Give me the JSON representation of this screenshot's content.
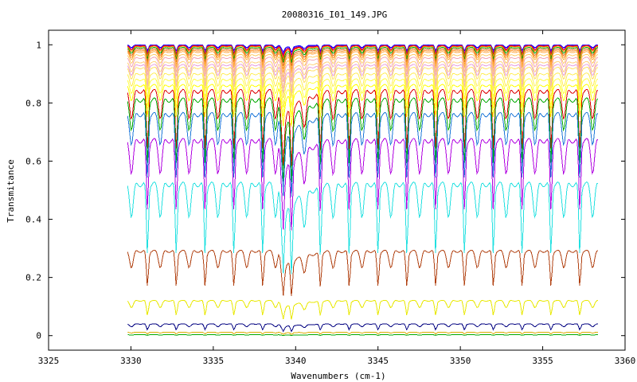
{
  "chart_data": {
    "type": "line",
    "title": "20080316_I01_149.JPG",
    "xlabel": "Wavenumbers (cm-1)",
    "ylabel": "Transmitance",
    "xlim": [
      3325,
      3360
    ],
    "ylim": [
      -0.05,
      1.05
    ],
    "xticks": [
      3325,
      3330,
      3335,
      3340,
      3345,
      3350,
      3355,
      3360
    ],
    "yticks": [
      0,
      0.2,
      0.4,
      0.6,
      0.8,
      1
    ],
    "ytick_labels": [
      "0",
      "0.2",
      "0.4",
      "0.6",
      "0.8",
      "1"
    ],
    "grid": false,
    "x_range_of_data": [
      3329.8,
      3358.4
    ],
    "strong_absorption_at": 3339.2,
    "line_spacing_cm1": 1.75,
    "line_phase_cm1": 3331.0,
    "series": [
      {
        "color": "#0000ff",
        "baseline": 1.0,
        "depth": 0.02
      },
      {
        "color": "#7b00c8",
        "baseline": 0.998,
        "depth": 0.025
      },
      {
        "color": "#ff0000",
        "baseline": 0.996,
        "depth": 0.03
      },
      {
        "color": "#ff7f00",
        "baseline": 0.994,
        "depth": 0.035
      },
      {
        "color": "#00aa00",
        "baseline": 0.99,
        "depth": 0.04
      },
      {
        "color": "#d2691e",
        "baseline": 0.985,
        "depth": 0.045
      },
      {
        "color": "#ff9933",
        "baseline": 0.98,
        "depth": 0.05
      },
      {
        "color": "#ffaa44",
        "baseline": 0.975,
        "depth": 0.055
      },
      {
        "color": "#ffcc66",
        "baseline": 0.965,
        "depth": 0.06
      },
      {
        "color": "#f4a6b8",
        "baseline": 0.955,
        "depth": 0.065
      },
      {
        "color": "#ffd27f",
        "baseline": 0.94,
        "depth": 0.07
      },
      {
        "color": "#e8a0e0",
        "baseline": 0.93,
        "depth": 0.075
      },
      {
        "color": "#ffe066",
        "baseline": 0.92,
        "depth": 0.08
      },
      {
        "color": "#ffee55",
        "baseline": 0.9,
        "depth": 0.09
      },
      {
        "color": "#ffff44",
        "baseline": 0.88,
        "depth": 0.1
      },
      {
        "color": "#ffff00",
        "baseline": 0.86,
        "depth": 0.11
      },
      {
        "color": "#dd0000",
        "baseline": 0.84,
        "depth": 0.2
      },
      {
        "color": "#00aa00",
        "baseline": 0.81,
        "depth": 0.22
      },
      {
        "color": "#1e78d8",
        "baseline": 0.76,
        "depth": 0.22
      },
      {
        "color": "#b000e0",
        "baseline": 0.67,
        "depth": 0.24
      },
      {
        "color": "#22e0e0",
        "baseline": 0.52,
        "depth": 0.24
      },
      {
        "color": "#b04010",
        "baseline": 0.29,
        "depth": 0.12
      },
      {
        "color": "#e8e800",
        "baseline": 0.12,
        "depth": 0.05
      },
      {
        "color": "#000080",
        "baseline": 0.04,
        "depth": 0.02
      },
      {
        "color": "#ddaa00",
        "baseline": 0.012,
        "depth": 0.006
      },
      {
        "color": "#00aa00",
        "baseline": 0.003,
        "depth": 0.002
      }
    ]
  }
}
